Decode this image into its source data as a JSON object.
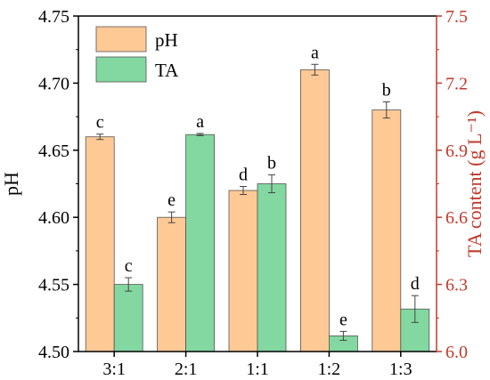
{
  "chart_data": {
    "type": "bar",
    "title": "",
    "categories": [
      "3:1",
      "2:1",
      "1:1",
      "1:2",
      "1:3"
    ],
    "y_left": {
      "label": "pH",
      "range": [
        4.5,
        4.75
      ],
      "ticks": [
        "4.50",
        "4.55",
        "4.60",
        "4.65",
        "4.70",
        "4.75"
      ],
      "color": "#000000"
    },
    "y_right": {
      "label": "TA content (g L⁻¹)",
      "range": [
        6.0,
        7.5
      ],
      "ticks": [
        "6.0",
        "6.3",
        "6.6",
        "6.9",
        "7.2",
        "7.5"
      ],
      "color": "#c0392b"
    },
    "series": [
      {
        "name": "pH",
        "axis": "left",
        "color": "#ffc995",
        "values": [
          4.66,
          4.6,
          4.62,
          4.71,
          4.68
        ],
        "errors": [
          0.002,
          0.004,
          0.003,
          0.004,
          0.006
        ],
        "letters": [
          "c",
          "e",
          "d",
          "a",
          "b"
        ]
      },
      {
        "name": "TA",
        "axis": "right",
        "color": "#82d8a0",
        "values": [
          6.3,
          6.97,
          6.75,
          6.07,
          6.19
        ],
        "errors": [
          0.03,
          0.005,
          0.04,
          0.02,
          0.06
        ],
        "letters": [
          "c",
          "a",
          "b",
          "e",
          "d"
        ]
      }
    ],
    "legend_position": "top-left",
    "grid": false
  }
}
